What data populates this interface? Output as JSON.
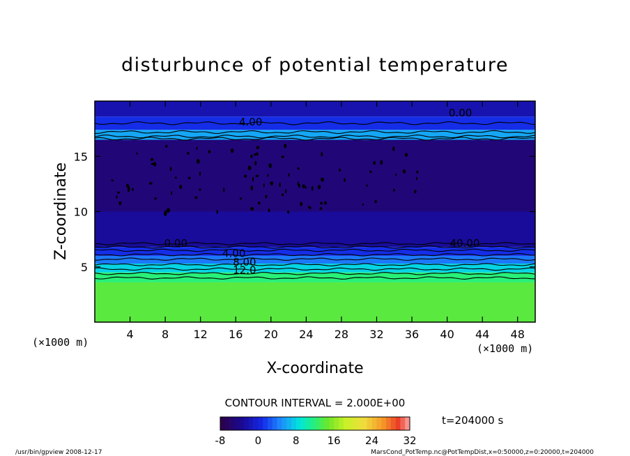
{
  "chart_data": {
    "type": "heatmap",
    "title": "disturbunce of potential temperature",
    "xlabel": "X-coordinate",
    "ylabel": "Z-coordinate",
    "x_unit": "(×1000 m)",
    "x_unit_left": "(×1000 m)",
    "xlim": [
      0,
      50
    ],
    "ylim": [
      0,
      20
    ],
    "x_ticks": [
      4,
      8,
      12,
      16,
      20,
      24,
      28,
      32,
      36,
      40,
      44,
      48
    ],
    "y_ticks": [
      5,
      10,
      15
    ],
    "contour_interval_text": "CONTOUR INTERVAL = 2.000E+00",
    "time_text": "t=204000 s",
    "colorbar": {
      "min": -8,
      "max": 32,
      "ticks": [
        -8,
        0,
        8,
        16,
        24,
        32
      ]
    },
    "layers": [
      {
        "z_from": 0,
        "z_to": 3.6,
        "value": 14
      },
      {
        "z_from": 3.6,
        "z_to": 4.5,
        "value": 12
      },
      {
        "z_from": 4.5,
        "z_to": 5.3,
        "value": 8
      },
      {
        "z_from": 5.3,
        "z_to": 6.0,
        "value": 4
      },
      {
        "z_from": 6.0,
        "z_to": 6.8,
        "value": 1
      },
      {
        "z_from": 6.8,
        "z_to": 10.0,
        "value": -3
      },
      {
        "z_from": 10.0,
        "z_to": 16.5,
        "value": -5
      },
      {
        "z_from": 16.5,
        "z_to": 17.4,
        "value": 6
      },
      {
        "z_from": 17.4,
        "z_to": 18.6,
        "value": 1
      },
      {
        "z_from": 18.6,
        "z_to": 20.0,
        "value": -2
      }
    ],
    "contour_labels": [
      {
        "text": "4.00",
        "x": 17.7,
        "z": 17.8
      },
      {
        "text": "0.00",
        "x": 41.5,
        "z": 18.6
      },
      {
        "text": "0.00",
        "x": 9.2,
        "z": 6.8
      },
      {
        "text": "4.00",
        "x": 15.8,
        "z": 5.9
      },
      {
        "text": "8.00",
        "x": 17.0,
        "z": 5.1
      },
      {
        "text": "12.0",
        "x": 17.0,
        "z": 4.4
      },
      {
        "text": "40.00",
        "x": 42.0,
        "z": 6.8
      }
    ],
    "contour_levels": [
      18.0,
      17.2,
      16.8,
      16.6,
      7.1,
      6.8,
      6.5,
      6.1,
      5.7,
      5.2,
      4.8,
      4.4,
      4.0
    ]
  },
  "footer": {
    "left": "/usr/bin/gpview   2008-12-17",
    "right": "MarsCond_PotTemp.nc@PotTempDist,x=0:50000,z=0:20000,t=204000"
  }
}
